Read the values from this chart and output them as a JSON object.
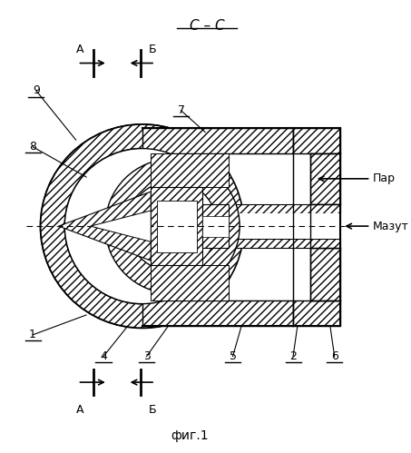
{
  "title": "фиг.1",
  "section_label": "С – С",
  "par_label": "Пар",
  "mazut_label": "Мазут",
  "bg_color": "#ffffff",
  "line_color": "#000000",
  "figsize": [
    4.53,
    4.99
  ],
  "dpi": 100
}
